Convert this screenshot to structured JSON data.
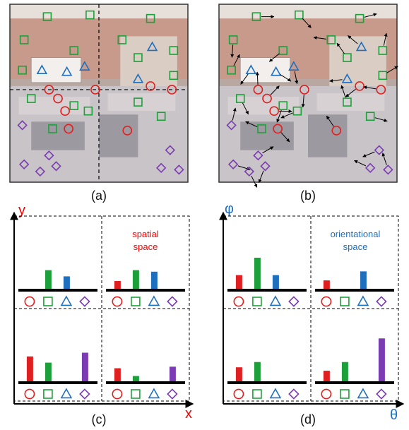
{
  "captions": {
    "a": "(a)",
    "b": "(b)",
    "c": "(c)",
    "d": "(d)"
  },
  "axes": {
    "c_y": "y",
    "c_x": "x",
    "d_y": "φ",
    "d_x": "θ"
  },
  "notes": {
    "c_line1": "spatial",
    "c_line2": "space",
    "d_line1": "orientational",
    "d_line2": "space"
  },
  "colors": {
    "circle": "#e02020",
    "square": "#1ca03a",
    "triangle": "#1f6fbf",
    "diamond": "#7a3bb3",
    "axis_red": "#ff0000",
    "axis_blue": "#1f6fbf"
  },
  "categories": [
    "circle",
    "square",
    "triangle",
    "diamond"
  ],
  "histograms": {
    "c": {
      "top_left": [
        0,
        0.6,
        0.4,
        0
      ],
      "top_right": [
        0.25,
        0.6,
        0.55,
        0
      ],
      "bottom_left": [
        0.8,
        0.6,
        0,
        0.92
      ],
      "bottom_right": [
        0.42,
        0.17,
        0,
        0.47
      ]
    },
    "d": {
      "top_left": [
        0.44,
        1.0,
        0.44,
        0
      ],
      "top_right": [
        0.27,
        0,
        0.56,
        0
      ],
      "bottom_left": [
        0.45,
        0.62,
        0,
        0
      ],
      "bottom_right": [
        0.34,
        0.62,
        0,
        1.38
      ]
    }
  },
  "scenes": {
    "a": {
      "quadrant_lines": true,
      "arrows": false
    },
    "b": {
      "quadrant_lines": false,
      "arrows": true
    }
  }
}
